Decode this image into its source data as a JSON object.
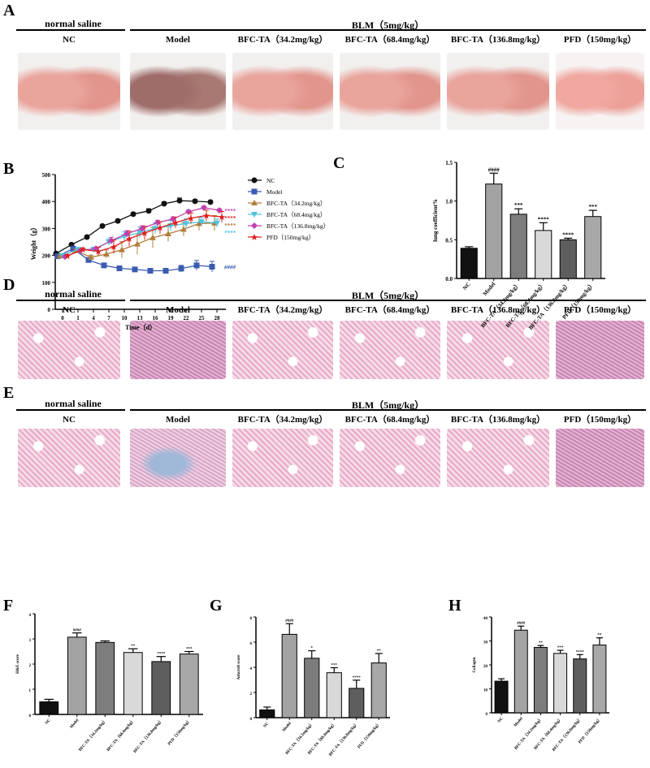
{
  "panels": {
    "A": "A",
    "B": "B",
    "C": "C",
    "D": "D",
    "E": "E",
    "F": "F",
    "G": "G",
    "H": "H"
  },
  "header": {
    "control": "normal saline",
    "treatment": "BLM（5mg/kg）"
  },
  "groups": [
    "NC",
    "Model",
    "BFC-TA（34.2mg/kg）",
    "BFC-TA（68.4mg/kg）",
    "BFC-TA（136.8mg/kg）",
    "PFD（150mg/kg）"
  ],
  "bar_colors": [
    "#111111",
    "#a3a3a3",
    "#7d7d7d",
    "#d9d9d9",
    "#5e5e5e",
    "#a8a8a8"
  ],
  "chart_data": [
    {
      "panel": "B",
      "type": "line",
      "xlabel": "Time（d）",
      "ylabel": "Weight（g）",
      "ylim": [
        0,
        500
      ],
      "yticks": [
        0,
        100,
        200,
        300,
        400,
        500
      ],
      "x": [
        0,
        1,
        4,
        7,
        10,
        13,
        16,
        19,
        22,
        25,
        28
      ],
      "legend": "right",
      "series": [
        {
          "name": "NC",
          "color": "#111111",
          "marker": "circle",
          "values": [
            207,
            240,
            268,
            309,
            328,
            353,
            365,
            392,
            403,
            401,
            398
          ],
          "err": [
            5,
            5,
            5,
            5,
            5,
            6,
            8,
            7,
            10,
            6,
            5
          ],
          "annotation": ""
        },
        {
          "name": "Model",
          "color": "#3a5bb0",
          "marker": "square",
          "values": [
            197,
            225,
            183,
            163,
            152,
            148,
            143,
            143,
            151,
            163,
            158
          ],
          "err": [
            6,
            6,
            5,
            6,
            6,
            5,
            5,
            5,
            12,
            18,
            20
          ],
          "annotation": "####"
        },
        {
          "name": "BFC-TA（34.2mg/kg）",
          "color": "#b07d3a",
          "marker": "triangle",
          "values": [
            198,
            218,
            193,
            205,
            221,
            242,
            266,
            280,
            297,
            318,
            320
          ],
          "err": [
            5,
            6,
            8,
            15,
            30,
            38,
            38,
            28,
            25,
            25,
            28
          ],
          "annotation": "****"
        },
        {
          "name": "BFC-TA（68.4mg/kg）",
          "color": "#4fc3e0",
          "marker": "triangle-down",
          "values": [
            200,
            222,
            222,
            250,
            270,
            285,
            300,
            310,
            318,
            325,
            320
          ],
          "err": [
            5,
            6,
            8,
            12,
            18,
            20,
            20,
            20,
            18,
            15,
            15
          ],
          "annotation": "****"
        },
        {
          "name": "BFC-TA（136.8mg/kg）",
          "color": "#c040b0",
          "marker": "diamond",
          "values": [
            195,
            218,
            225,
            255,
            280,
            300,
            322,
            335,
            362,
            377,
            367
          ],
          "err": [
            5,
            6,
            6,
            12,
            12,
            10,
            8,
            8,
            6,
            6,
            6
          ],
          "annotation": "****"
        },
        {
          "name": "PFD（150mg/kg）",
          "color": "#e02020",
          "marker": "star",
          "values": [
            198,
            222,
            215,
            232,
            262,
            283,
            303,
            322,
            338,
            348,
            343
          ],
          "err": [
            5,
            6,
            15,
            25,
            28,
            25,
            22,
            20,
            20,
            20,
            20
          ],
          "annotation": "****"
        }
      ]
    },
    {
      "panel": "C",
      "type": "bar",
      "ylabel": "lung coefficient%",
      "ylim": [
        0,
        1.5
      ],
      "yticks": [
        "0.0",
        "0.5",
        "1.0",
        "1.5"
      ],
      "values": [
        0.39,
        1.22,
        0.83,
        0.62,
        0.5,
        0.8
      ],
      "err": [
        0.02,
        0.14,
        0.07,
        0.1,
        0.02,
        0.08
      ],
      "annotations": [
        "",
        "####",
        "***",
        "****",
        "****",
        "***"
      ]
    },
    {
      "panel": "F",
      "type": "bar",
      "ylabel": "H&E score",
      "ylim": [
        0,
        4
      ],
      "yticks": [
        "0",
        "1",
        "2",
        "3",
        "4"
      ],
      "values": [
        0.5,
        3.07,
        2.86,
        2.46,
        2.1,
        2.4
      ],
      "err": [
        0.1,
        0.17,
        0.06,
        0.15,
        0.2,
        0.1
      ],
      "annotations": [
        "",
        "####",
        "",
        "**",
        "****",
        "***"
      ]
    },
    {
      "panel": "G",
      "type": "bar",
      "ylabel": "Ashcroft score",
      "ylim": [
        0,
        8
      ],
      "yticks": [
        "0",
        "2",
        "4",
        "6",
        "8"
      ],
      "values": [
        0.62,
        6.62,
        4.72,
        3.57,
        2.33,
        4.35
      ],
      "err": [
        0.22,
        0.85,
        0.6,
        0.4,
        0.65,
        0.75
      ],
      "annotations": [
        "",
        "####",
        "*",
        "***",
        "****",
        "**"
      ]
    },
    {
      "panel": "H",
      "type": "bar",
      "ylabel": "Collagen",
      "ylim": [
        0,
        40
      ],
      "yticks": [
        "0",
        "10",
        "20",
        "30",
        "40"
      ],
      "values": [
        13.2,
        34.5,
        27.3,
        24.8,
        22.5,
        28.3
      ],
      "err": [
        1,
        1.7,
        0.8,
        1.3,
        1.8,
        3
      ],
      "annotations": [
        "",
        "####",
        "**",
        "***",
        "****",
        "**"
      ]
    }
  ]
}
